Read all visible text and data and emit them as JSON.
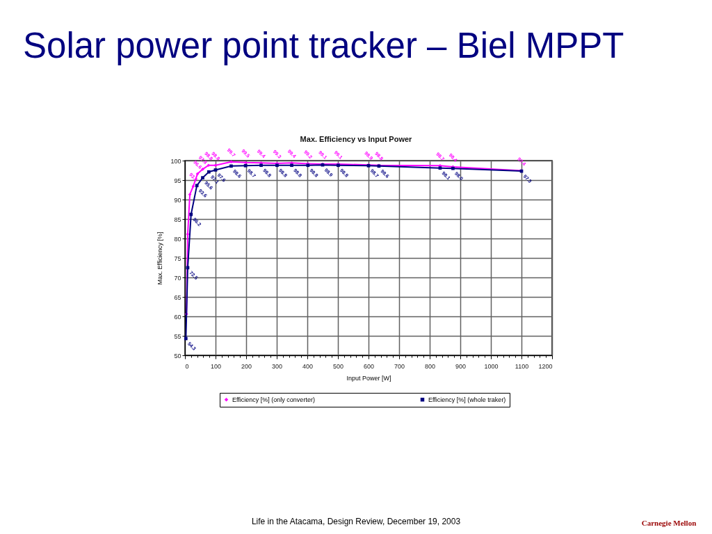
{
  "chart_data": {
    "type": "line",
    "title": "Solar power point tracker – Biel MPPT",
    "subtitle": "Max. Efficiency vs Input Power",
    "xlabel": "Input Power [W]",
    "ylabel": "Max. Efficiency [%]",
    "xlim": [
      0,
      1200
    ],
    "ylim": [
      50,
      100
    ],
    "xticks": [
      0,
      {
        "value": 20,
        "label": null
      },
      {
        "value": 40,
        "label": null
      },
      {
        "value": 60,
        "label": null
      },
      {
        "value": 80,
        "label": null
      },
      100,
      {
        "value": 120,
        "label": null
      },
      {
        "value": 140,
        "label": null
      },
      {
        "value": 160,
        "label": null
      },
      {
        "value": 180,
        "label": null
      },
      200,
      {
        "value": 220,
        "label": null
      },
      {
        "value": 240,
        "label": null
      },
      {
        "value": 260,
        "label": null
      },
      {
        "value": 280,
        "label": null
      },
      300,
      {
        "value": 320,
        "label": null
      },
      {
        "value": 340,
        "label": null
      },
      {
        "value": 360,
        "label": null
      },
      {
        "value": 380,
        "label": null
      },
      400,
      {
        "value": 420,
        "label": null
      },
      {
        "value": 440,
        "label": null
      },
      {
        "value": 460,
        "label": null
      },
      {
        "value": 480,
        "label": null
      },
      500,
      {
        "value": 520,
        "label": null
      },
      {
        "value": 540,
        "label": null
      },
      {
        "value": 560,
        "label": null
      },
      {
        "value": 580,
        "label": null
      },
      600,
      {
        "value": 620,
        "label": null
      },
      {
        "value": 640,
        "label": null
      },
      {
        "value": 660,
        "label": null
      },
      {
        "value": 680,
        "label": null
      },
      700,
      {
        "value": 720,
        "label": null
      },
      {
        "value": 740,
        "label": null
      },
      {
        "value": 760,
        "label": null
      },
      {
        "value": 780,
        "label": null
      },
      800,
      {
        "value": 820,
        "label": null
      },
      {
        "value": 840,
        "label": null
      },
      {
        "value": 860,
        "label": null
      },
      {
        "value": 880,
        "label": null
      },
      900,
      {
        "value": 920,
        "label": null
      },
      {
        "value": 940,
        "label": null
      },
      {
        "value": 960,
        "label": null
      },
      {
        "value": 980,
        "label": null
      },
      1000,
      {
        "value": 1020,
        "label": null
      },
      {
        "value": 1040,
        "label": null
      },
      {
        "value": 1060,
        "label": null
      },
      {
        "value": 1080,
        "label": null
      },
      1100,
      {
        "value": 1120,
        "label": null
      },
      {
        "value": 1140,
        "label": null
      },
      {
        "value": 1160,
        "label": null
      },
      {
        "value": 1180,
        "label": null
      },
      1200
    ],
    "yticks": [
      50,
      55,
      60,
      65,
      70,
      75,
      80,
      85,
      90,
      95,
      100
    ],
    "grid": true,
    "legend": "bottom",
    "series": [
      {
        "name": "Efficiency [%] (only converter)",
        "color": "#ff00ff",
        "marker": "diamond",
        "line_style": "solid",
        "x": [
          5,
          9,
          16,
          27,
          41,
          58,
          77,
          100,
          151,
          198,
          249,
          301,
          349,
          402,
          450,
          501,
          600,
          634,
          834,
          876,
          1100
        ],
        "values": [
          60.6,
          81.1,
          91.3,
          93.4,
          96.6,
          97.8,
          98.8,
          98.8,
          99.7,
          99.5,
          99.4,
          99.3,
          99.4,
          99.2,
          99.1,
          99.1,
          98.9,
          98.8,
          98.7,
          98.4,
          97.4
        ],
        "value_labels": [
          null,
          null,
          null,
          "93.4",
          "96.6",
          "97.8",
          "98.8",
          "98.8",
          "99.7",
          "99.5",
          "99.4",
          "99.3",
          "99.4",
          "99.2",
          "99.1",
          "99.1",
          "98.9",
          "98.8",
          "98.7",
          "98.4",
          "97.4"
        ]
      },
      {
        "name": "Efficiency [%] (whole traker)",
        "color": "#000080",
        "marker": "square",
        "line_style": "solid",
        "x": [
          3,
          9,
          20,
          39,
          58,
          78,
          100,
          151,
          198,
          249,
          301,
          349,
          402,
          450,
          501,
          600,
          634,
          834,
          876,
          1100
        ],
        "values": [
          54.3,
          72.5,
          86.2,
          93.6,
          95.6,
          97.1,
          97.6,
          98.6,
          98.7,
          98.8,
          98.8,
          98.8,
          98.8,
          98.9,
          98.8,
          98.7,
          98.6,
          98.1,
          98.0,
          97.3
        ],
        "value_labels": [
          "54.3",
          "72.5",
          "86.2",
          "93.6",
          "95.6",
          "97.1",
          "97.6",
          "98.6",
          "98.7",
          "98.8",
          "98.8",
          "98.8",
          "98.8",
          "98.9",
          "98.8",
          "98.7",
          "98.6",
          "98.1",
          "98.0",
          "97.3"
        ]
      }
    ],
    "annotations": [
      "Life in the Atacama, Design Review, December 19, 2003",
      "Carnegie Mellon"
    ]
  }
}
